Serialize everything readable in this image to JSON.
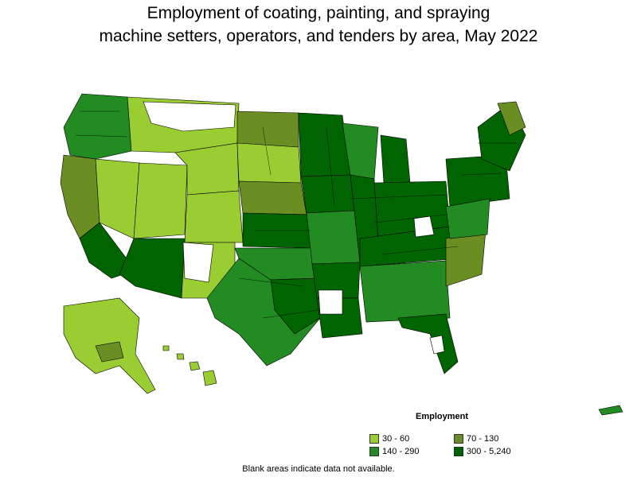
{
  "title": {
    "line1": "Employment of coating, painting, and spraying",
    "line2": "machine setters, operators, and tenders by area, May 2022"
  },
  "legend": {
    "title": "Employment",
    "items": [
      {
        "label": "30 - 60",
        "color": "#9acd32"
      },
      {
        "label": "70 - 130",
        "color": "#6b8e23"
      },
      {
        "label": "140 - 290",
        "color": "#228b22"
      },
      {
        "label": "300 - 5,240",
        "color": "#006400"
      }
    ]
  },
  "note": "Blank areas indicate data not available.",
  "colors": {
    "no_data": "#ffffff",
    "border": "#000000"
  }
}
